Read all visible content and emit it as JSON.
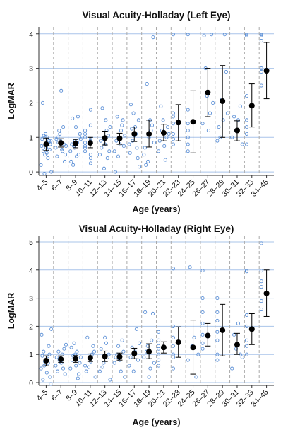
{
  "chart_data": [
    {
      "type": "scatter",
      "title": "Visual Acuity-Holladay (Left Eye)",
      "xlabel": "Age (years)",
      "ylabel": "LogMAR",
      "ylim": [
        -0.1,
        4.2
      ],
      "yticks": [
        0,
        1,
        2,
        3,
        4
      ],
      "grid": "horizontal lines at y ticks; dashed vertical separators between age groups",
      "colors": {
        "points": "#5b8fd6",
        "mean": "#000000",
        "grid": "#a9c4ea",
        "separator": "#aaaaaa"
      },
      "categories": [
        "4–5",
        "6–7",
        "8–9",
        "10–11",
        "12–13",
        "14–15",
        "16–17",
        "18–19",
        "20–21",
        "22–23",
        "24–25",
        "26–27",
        "28–29",
        "30–31",
        "32–33",
        "34–46"
      ],
      "mean": [
        0.8,
        0.84,
        0.82,
        0.84,
        0.98,
        0.97,
        1.1,
        1.1,
        1.13,
        1.43,
        1.45,
        2.3,
        2.05,
        1.2,
        1.92,
        2.93
      ],
      "error_low": [
        0.62,
        0.72,
        0.7,
        0.7,
        0.78,
        0.8,
        0.88,
        0.72,
        0.9,
        0.9,
        0.55,
        1.6,
        1.0,
        0.9,
        1.3,
        2.12
      ],
      "error_high": [
        0.98,
        0.96,
        0.94,
        1.0,
        1.18,
        1.12,
        1.3,
        1.5,
        1.38,
        1.95,
        2.35,
        3.0,
        3.08,
        1.48,
        2.55,
        3.75
      ],
      "points": [
        [
          0.2,
          0.5,
          0.9,
          0.95,
          0.7,
          0.8,
          0.6,
          1.0,
          0.0,
          -0.05,
          0.85,
          0.75,
          1.1,
          0.65,
          2.0,
          0.55,
          0.9,
          1.05,
          0.4
        ],
        [
          0.7,
          0.9,
          0.5,
          1.2,
          0.8,
          1.0,
          0.6,
          0.95,
          2.35,
          0.75,
          1.1,
          0.3,
          0.85,
          1.3,
          0.45,
          0.65
        ],
        [
          0.6,
          0.9,
          1.1,
          0.75,
          0.5,
          1.55,
          0.85,
          0.3,
          1.3,
          0.95,
          0.7,
          1.0,
          0.2,
          1.6,
          0.8,
          0.45
        ],
        [
          0.7,
          0.4,
          1.2,
          0.95,
          0.6,
          1.35,
          0.85,
          0.5,
          1.0,
          0.25,
          1.1,
          1.8,
          0.75,
          0.9
        ],
        [
          0.5,
          1.5,
          0.9,
          1.2,
          0.7,
          0.4,
          1.85,
          1.05,
          0.95,
          0.6,
          0.1,
          1.3,
          0.8
        ],
        [
          0.6,
          1.2,
          0.9,
          1.5,
          0.45,
          1.05,
          0.8,
          0.0,
          1.35,
          1.6,
          0.75,
          0.95
        ],
        [
          0.8,
          1.3,
          0.55,
          1.1,
          1.95,
          0.7,
          1.25,
          0.4,
          0.9,
          1.5,
          1.7,
          0.15,
          1.05
        ],
        [
          0.5,
          1.2,
          2.55,
          0.85,
          1.5,
          0.2,
          3.9,
          1.0,
          0.7,
          1.35,
          0.3
        ],
        [
          0.6,
          1.0,
          1.5,
          0.9,
          1.3,
          0.75,
          1.9,
          1.1,
          0.35,
          1.2
        ],
        [
          0.8,
          1.1,
          1.6,
          1.4,
          3.98,
          1.7,
          0.95
        ],
        [
          0.6,
          1.0,
          3.98,
          1.8,
          0.8,
          1.4,
          1.2
        ],
        [
          1.4,
          2.0,
          3.98,
          1.7,
          1.2,
          2.2,
          3.0,
          3.95
        ],
        [
          0.9,
          1.7,
          2.9,
          3.98,
          1.5,
          2.1,
          1.0,
          1.3
        ],
        [
          1.0,
          1.6,
          1.2,
          1.5,
          1.9,
          0.8
        ],
        [
          3.98,
          1.3,
          2.2,
          1.1,
          3.95,
          0.8,
          1.5
        ],
        [
          3.98,
          3.95,
          2.9,
          3.8,
          3.98,
          2.5,
          3.0
        ]
      ]
    },
    {
      "type": "scatter",
      "title": "Visual Acuity-Holladay (Right Eye)",
      "xlabel": "Age (years)",
      "ylabel": "LogMAR",
      "ylim": [
        -0.1,
        5.2
      ],
      "yticks": [
        0,
        1,
        2,
        3,
        4,
        5
      ],
      "grid": "horizontal lines at y ticks; dashed vertical separators between age groups",
      "colors": {
        "points": "#5b8fd6",
        "mean": "#000000",
        "grid": "#a9c4ea",
        "separator": "#aaaaaa"
      },
      "categories": [
        "4–5",
        "6–7",
        "8–9",
        "10–11",
        "12–13",
        "14–15",
        "16–17",
        "18–19",
        "20–21",
        "22–23",
        "24–25",
        "26–27",
        "28–29",
        "30–31",
        "32–33",
        "34–46"
      ],
      "mean": [
        0.78,
        0.83,
        0.84,
        0.88,
        0.93,
        0.92,
        1.03,
        1.1,
        1.25,
        1.43,
        1.25,
        1.67,
        1.86,
        1.35,
        1.9,
        3.17
      ],
      "error_low": [
        0.6,
        0.72,
        0.72,
        0.75,
        0.75,
        0.8,
        0.85,
        0.85,
        1.05,
        0.9,
        0.3,
        1.3,
        0.95,
        1.0,
        1.35,
        2.35
      ],
      "error_high": [
        0.95,
        0.95,
        0.96,
        1.02,
        1.12,
        1.05,
        1.22,
        1.38,
        1.45,
        1.98,
        2.22,
        2.1,
        2.78,
        1.75,
        2.45,
        4.0
      ],
      "points": [
        [
          0.5,
          0.9,
          0.2,
          1.1,
          0.7,
          1.7,
          0.8,
          -0.05,
          0.6,
          1.3,
          0.95,
          0.35,
          1.9,
          0.75,
          1.0,
          0.1,
          0.85
        ],
        [
          0.6,
          1.0,
          0.4,
          1.2,
          0.8,
          1.35,
          0.7,
          0.9,
          0.5,
          1.1,
          0.3,
          0.75
        ],
        [
          0.5,
          1.1,
          0.8,
          0.3,
          1.4,
          0.9,
          0.6,
          1.25,
          0.15,
          0.95,
          0.7,
          1.0
        ],
        [
          0.6,
          1.3,
          0.9,
          0.4,
          1.1,
          0.75,
          1.6,
          0.2,
          1.0,
          0.55
        ],
        [
          0.4,
          1.0,
          1.4,
          0.7,
          1.2,
          0.1,
          0.9,
          1.6,
          0.55
        ],
        [
          0.7,
          1.1,
          0.4,
          1.3,
          0.9,
          0.2,
          1.5,
          0.8,
          1.0
        ],
        [
          0.6,
          1.4,
          0.8,
          1.9,
          1.1,
          0.4,
          1.25,
          0.9
        ],
        [
          0.9,
          2.45,
          0.5,
          1.3,
          2.5,
          0.7,
          1.5,
          0.2,
          1.1
        ],
        [
          0.8,
          1.2,
          1.8,
          1.0,
          1.5,
          0.6,
          1.3
        ],
        [
          4.05,
          1.0,
          1.6,
          0.5,
          1.3,
          2.0,
          0.9
        ],
        [
          0.8,
          4.1,
          1.3,
          1.6,
          0.2,
          1.0
        ],
        [
          3.0,
          1.4,
          2.1,
          1.2,
          1.7,
          2.5,
          3.98
        ],
        [
          1.5,
          2.5,
          1.0,
          2.2,
          3.0,
          1.8,
          0.8
        ],
        [
          0.5,
          1.7,
          1.2,
          2.1,
          1.0,
          0.9
        ],
        [
          3.98,
          1.5,
          2.0,
          1.3,
          2.4,
          3.95,
          1.0
        ],
        [
          4.95,
          3.98,
          2.6,
          3.4,
          2.9,
          3.98,
          3.6
        ]
      ]
    }
  ]
}
